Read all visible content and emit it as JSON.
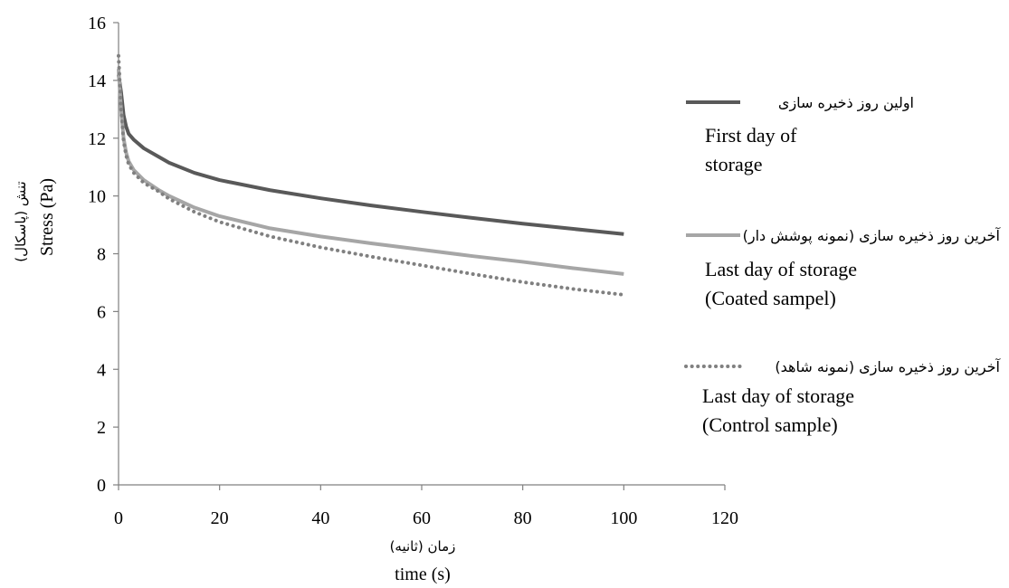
{
  "chart_data": {
    "type": "line",
    "xlabel": "time (s)",
    "xlabel_fa": "زمان (ثانیه)",
    "ylabel": "Stress (Pa)",
    "ylabel_fa": "تنش (پاسکال)",
    "xlim": [
      0,
      120
    ],
    "ylim": [
      0,
      16
    ],
    "xticks": [
      0,
      20,
      40,
      60,
      80,
      100,
      120
    ],
    "yticks": [
      0,
      2,
      4,
      6,
      8,
      10,
      12,
      14,
      16
    ],
    "grid": false,
    "legend_position": "right",
    "series": [
      {
        "name": "First day of storage",
        "name_fa": "اولین روز ذخیره سازی",
        "label_lines": [
          "First day of",
          "storage"
        ],
        "color": "#595959",
        "style": "solid",
        "x": [
          0,
          0.5,
          1,
          1.5,
          2,
          3,
          5,
          8,
          10,
          15,
          20,
          30,
          40,
          50,
          60,
          70,
          80,
          90,
          100
        ],
        "y": [
          14.2,
          13.6,
          12.8,
          12.4,
          12.15,
          11.95,
          11.65,
          11.35,
          11.15,
          10.8,
          10.55,
          10.2,
          9.92,
          9.67,
          9.45,
          9.24,
          9.04,
          8.86,
          8.68
        ]
      },
      {
        "name": "Last day of storage (Coated sampel)",
        "name_fa": "آخرین روز ذخیره سازی (نمونه پوشش دار)",
        "label_lines": [
          "Last day of storage",
          "(Coated sampel)"
        ],
        "color": "#a6a6a6",
        "style": "solid",
        "x": [
          0,
          0.5,
          1,
          1.5,
          2,
          3,
          5,
          8,
          10,
          15,
          20,
          30,
          40,
          50,
          60,
          70,
          80,
          90,
          100
        ],
        "y": [
          14.4,
          13.0,
          12.0,
          11.5,
          11.2,
          10.9,
          10.55,
          10.2,
          10.0,
          9.6,
          9.3,
          8.88,
          8.6,
          8.36,
          8.14,
          7.92,
          7.72,
          7.5,
          7.3
        ]
      },
      {
        "name": "Last day of storage (Control sample)",
        "name_fa": "آخرین روز ذخیره سازی (نمونه شاهد)",
        "label_lines": [
          "Last day of storage",
          "(Control sample)"
        ],
        "color": "#808080",
        "style": "dotted",
        "x": [
          0,
          0.5,
          1,
          1.5,
          2,
          3,
          5,
          8,
          10,
          15,
          20,
          30,
          40,
          50,
          60,
          70,
          80,
          90,
          100
        ],
        "y": [
          14.85,
          13.0,
          11.9,
          11.4,
          11.1,
          10.8,
          10.45,
          10.15,
          9.9,
          9.45,
          9.1,
          8.6,
          8.22,
          7.9,
          7.6,
          7.3,
          7.02,
          6.78,
          6.58
        ]
      }
    ]
  }
}
